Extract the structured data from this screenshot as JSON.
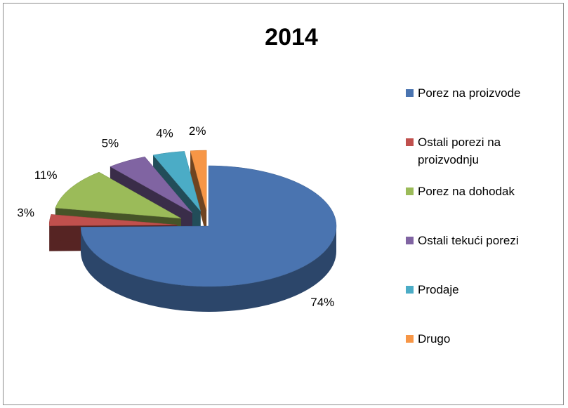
{
  "chart_data": {
    "type": "pie",
    "title": "2014",
    "categories": [
      "Porez na proizvode",
      "Ostali porezi na proizvodnju",
      "Porez na dohodak",
      "Ostali tekući porezi",
      "Prodaje",
      "Drugo"
    ],
    "values": [
      74,
      3,
      11,
      5,
      4,
      2
    ],
    "value_labels": [
      "74%",
      "3%",
      "11%",
      "5%",
      "4%",
      "2%"
    ],
    "colors": [
      "#4a74b0",
      "#c0504d",
      "#9bbb59",
      "#8064a2",
      "#4bacc6",
      "#f79646"
    ],
    "legend": "right"
  }
}
